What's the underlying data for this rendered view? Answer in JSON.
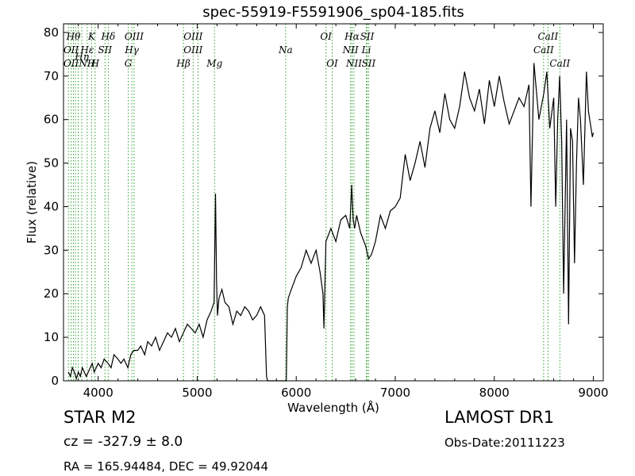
{
  "chart_data": {
    "type": "line",
    "title": "spec-55919-F5591906_sp04-185.fits",
    "xlabel": "Wavelength (Å)",
    "ylabel": "Flux (relative)",
    "xlim": [
      3650,
      9100
    ],
    "ylim": [
      0,
      82
    ],
    "xticks": [
      4000,
      5000,
      6000,
      7000,
      8000,
      9000
    ],
    "yticks": [
      0,
      10,
      20,
      30,
      40,
      50,
      60,
      70,
      80
    ],
    "grid": false,
    "series": [
      {
        "color": "#000000",
        "x": [
          3700,
          3720,
          3740,
          3760,
          3780,
          3800,
          3820,
          3840,
          3860,
          3880,
          3900,
          3920,
          3940,
          3960,
          3980,
          4000,
          4030,
          4060,
          4100,
          4130,
          4160,
          4200,
          4230,
          4260,
          4300,
          4330,
          4360,
          4400,
          4430,
          4470,
          4500,
          4540,
          4580,
          4620,
          4660,
          4700,
          4740,
          4780,
          4820,
          4860,
          4900,
          4940,
          4980,
          5020,
          5060,
          5100,
          5140,
          5170,
          5185,
          5195,
          5205,
          5220,
          5250,
          5280,
          5320,
          5360,
          5400,
          5440,
          5480,
          5520,
          5560,
          5600,
          5640,
          5680,
          5700,
          5710,
          5900,
          5910,
          5920,
          5950,
          6000,
          6050,
          6100,
          6150,
          6200,
          6240,
          6270,
          6280,
          6300,
          6350,
          6400,
          6450,
          6500,
          6540,
          6560,
          6575,
          6590,
          6610,
          6650,
          6700,
          6730,
          6760,
          6800,
          6850,
          6900,
          6950,
          7000,
          7050,
          7100,
          7150,
          7200,
          7250,
          7300,
          7350,
          7400,
          7450,
          7500,
          7550,
          7600,
          7650,
          7700,
          7750,
          7800,
          7850,
          7900,
          7950,
          8000,
          8050,
          8100,
          8150,
          8200,
          8250,
          8300,
          8350,
          8370,
          8400,
          8450,
          8500,
          8530,
          8560,
          8600,
          8620,
          8640,
          8660,
          8680,
          8700,
          8730,
          8750,
          8770,
          8790,
          8810,
          8830,
          8850,
          8870,
          8900,
          8930,
          8950,
          8970,
          8990,
          9000
        ],
        "y": [
          2,
          1,
          3,
          2,
          0.5,
          2,
          1,
          3,
          2,
          1,
          2,
          3,
          4,
          2,
          3,
          4,
          3,
          5,
          4,
          3,
          6,
          5,
          4,
          5,
          3,
          6,
          7,
          7,
          8,
          6,
          9,
          8,
          10,
          7,
          9,
          11,
          10,
          12,
          9,
          11,
          13,
          12,
          11,
          13,
          10,
          14,
          16,
          18,
          43,
          23,
          15,
          19,
          21,
          18,
          17,
          13,
          16,
          15,
          17,
          16,
          14,
          15,
          17,
          15,
          1,
          0,
          0,
          17,
          19,
          21,
          24,
          26,
          30,
          27,
          30,
          25,
          20,
          12,
          32,
          35,
          32,
          37,
          38,
          35,
          45,
          37,
          35,
          38,
          34,
          31,
          28,
          29,
          32,
          38,
          35,
          39,
          40,
          42,
          52,
          46,
          50,
          55,
          49,
          58,
          62,
          57,
          66,
          60,
          58,
          63,
          71,
          65,
          62,
          67,
          59,
          69,
          63,
          70,
          64,
          59,
          62,
          65,
          63,
          68,
          40,
          73,
          60,
          66,
          71,
          58,
          65,
          40,
          60,
          70,
          55,
          20,
          60,
          13,
          58,
          55,
          27,
          50,
          65,
          60,
          45,
          71,
          62,
          59,
          56,
          57
        ]
      }
    ],
    "annotations": {
      "line_labels": [
        {
          "text": "OII",
          "wl": 3727,
          "row": 2
        },
        {
          "text": "OII",
          "wl": 3727,
          "row": 3
        },
        {
          "text": "Hθ",
          "wl": 3750,
          "row": 1
        },
        {
          "text": "Hη",
          "wl": 3835,
          "row": 2.5
        },
        {
          "text": "Hε",
          "wl": 3889,
          "row": 2
        },
        {
          "text": "NH",
          "wl": 3889,
          "row": 3
        },
        {
          "text": "K",
          "wl": 3934,
          "row": 1
        },
        {
          "text": "H",
          "wl": 3969,
          "row": 3
        },
        {
          "text": "SII",
          "wl": 4069,
          "row": 2
        },
        {
          "text": "Hδ",
          "wl": 4102,
          "row": 1
        },
        {
          "text": "OIII",
          "wl": 4363,
          "row": 1
        },
        {
          "text": "Hγ",
          "wl": 4340,
          "row": 2
        },
        {
          "text": "G",
          "wl": 4304,
          "row": 3
        },
        {
          "text": "OIII",
          "wl": 4959,
          "row": 1
        },
        {
          "text": "OIII",
          "wl": 4959,
          "row": 2
        },
        {
          "text": "Hβ",
          "wl": 4861,
          "row": 3
        },
        {
          "text": "Mg",
          "wl": 5175,
          "row": 3
        },
        {
          "text": "Na",
          "wl": 5893,
          "row": 2
        },
        {
          "text": "OI",
          "wl": 6300,
          "row": 1
        },
        {
          "text": "OI",
          "wl": 6363,
          "row": 3
        },
        {
          "text": "Hα",
          "wl": 6563,
          "row": 1
        },
        {
          "text": "NII",
          "wl": 6548,
          "row": 2
        },
        {
          "text": "NII",
          "wl": 6583,
          "row": 3
        },
        {
          "text": "SII",
          "wl": 6716,
          "row": 1
        },
        {
          "text": "Li",
          "wl": 6708,
          "row": 2
        },
        {
          "text": "SII",
          "wl": 6731,
          "row": 3
        },
        {
          "text": "CaII",
          "wl": 8542,
          "row": 1
        },
        {
          "text": "CaII",
          "wl": 8498,
          "row": 2
        },
        {
          "text": "CaII",
          "wl": 8662,
          "row": 3
        }
      ],
      "line_marker_wavelengths": [
        3700,
        3727,
        3750,
        3771,
        3798,
        3835,
        3889,
        3934,
        3969,
        4069,
        4102,
        4304,
        4340,
        4363,
        4861,
        4959,
        5007,
        5175,
        5893,
        6300,
        6363,
        6548,
        6563,
        6583,
        6708,
        6716,
        6731,
        8498,
        8542,
        8662
      ],
      "marker_color": "#2ca02c"
    }
  },
  "footer": {
    "object_class": "STAR",
    "subclass": "M2",
    "redshift_text": "cz = -327.9  ± 8.0",
    "coords_text": "RA = 165.94484, DEC = 49.92044",
    "survey": "LAMOST DR1",
    "obs_date": "Obs-Date:20111223"
  }
}
